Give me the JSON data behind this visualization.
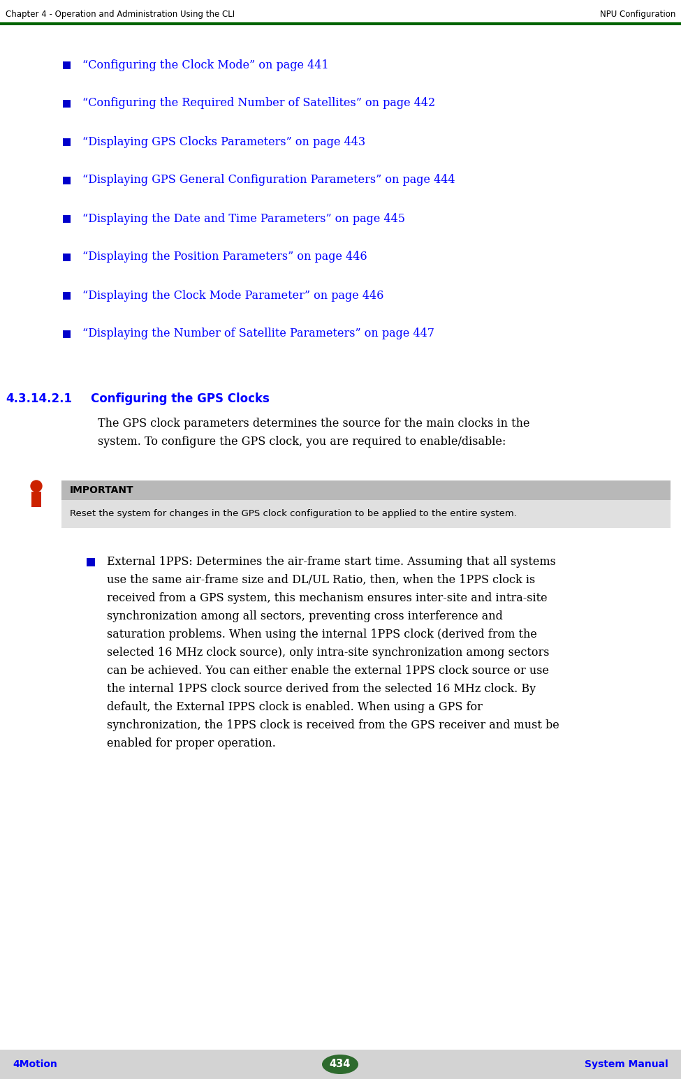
{
  "header_left": "Chapter 4 - Operation and Administration Using the CLI",
  "header_right": "NPU Configuration",
  "header_line_color": "#006400",
  "footer_left": "4Motion",
  "footer_right": "System Manual",
  "footer_page": "434",
  "footer_bg": "#d3d3d3",
  "footer_oval_color": "#2d6a2d",
  "bullet_color": "#0000cc",
  "link_color": "#0000ff",
  "text_color": "#000000",
  "header_font_color": "#000000",
  "bullet_items": [
    "“Configuring the Clock Mode” on page 441",
    "“Configuring the Required Number of Satellites” on page 442",
    "“Displaying GPS Clocks Parameters” on page 443",
    "“Displaying GPS General Configuration Parameters” on page 444",
    "“Displaying the Date and Time Parameters” on page 445",
    "“Displaying the Position Parameters” on page 446",
    "“Displaying the Clock Mode Parameter” on page 446",
    "“Displaying the Number of Satellite Parameters” on page 447"
  ],
  "section_number": "4.3.14.2.1",
  "section_title": "Configuring the GPS Clocks",
  "section_body_line1": "The GPS clock parameters determines the source for the main clocks in the",
  "section_body_line2": "system. To configure the GPS clock, you are required to enable/disable:",
  "important_label": "IMPORTANT",
  "important_text": "Reset the system for changes in the GPS clock configuration to be applied to the entire system.",
  "important_bg": "#e0e0e0",
  "important_label_bg": "#b8b8b8",
  "bullet2_lines": [
    "External 1PPS: Determines the air-frame start time. Assuming that all systems",
    "use the same air-frame size and DL/UL Ratio, then, when the 1PPS clock is",
    "received from a GPS system, this mechanism ensures inter-site and intra-site",
    "synchronization among all sectors, preventing cross interference and",
    "saturation problems. When using the internal 1PPS clock (derived from the",
    "selected 16 MHz clock source), only intra-site synchronization among sectors",
    "can be achieved. You can either enable the external 1PPS clock source or use",
    "the internal 1PPS clock source derived from the selected 16 MHz clock. By",
    "default, the External IPPS clock is enabled. When using a GPS for",
    "synchronization, the 1PPS clock is received from the GPS receiver and must be",
    "enabled for proper operation."
  ],
  "bg_color": "#ffffff"
}
